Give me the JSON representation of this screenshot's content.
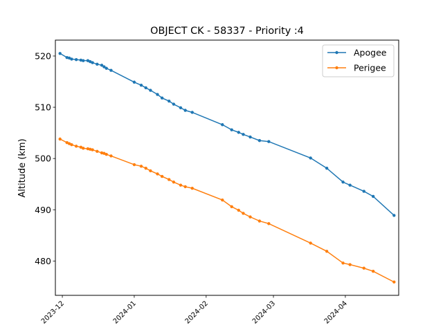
{
  "chart_data": {
    "type": "line",
    "title": "OBJECT CK - 58337 - Priority :4",
    "xlabel": "",
    "ylabel": "Altitude (km)",
    "x_ticks": [
      "2023-12",
      "2024-01",
      "2024-02",
      "2024-03",
      "2024-04"
    ],
    "y_ticks": [
      480,
      490,
      500,
      510,
      520
    ],
    "xlim": [
      "2023-11-28",
      "2024-04-24"
    ],
    "ylim": [
      473.3,
      523.1
    ],
    "legend_position": "top-right",
    "grid": false,
    "series": [
      {
        "name": "Apogee",
        "color": "#1f77b4",
        "points": [
          [
            "2023-11-30",
            520.5
          ],
          [
            "2023-12-03",
            519.7
          ],
          [
            "2023-12-04",
            519.6
          ],
          [
            "2023-12-05",
            519.4
          ],
          [
            "2023-12-07",
            519.3
          ],
          [
            "2023-12-09",
            519.2
          ],
          [
            "2023-12-10",
            519.1
          ],
          [
            "2023-12-12",
            519.1
          ],
          [
            "2023-12-13",
            518.9
          ],
          [
            "2023-12-14",
            518.7
          ],
          [
            "2023-12-16",
            518.4
          ],
          [
            "2023-12-18",
            518.2
          ],
          [
            "2023-12-19",
            517.9
          ],
          [
            "2023-12-20",
            517.6
          ],
          [
            "2023-12-22",
            517.2
          ],
          [
            "2024-01-01",
            514.9
          ],
          [
            "2024-01-04",
            514.3
          ],
          [
            "2024-01-06",
            513.8
          ],
          [
            "2024-01-08",
            513.3
          ],
          [
            "2024-01-11",
            512.5
          ],
          [
            "2024-01-13",
            511.8
          ],
          [
            "2024-01-16",
            511.2
          ],
          [
            "2024-01-18",
            510.6
          ],
          [
            "2024-01-21",
            509.9
          ],
          [
            "2024-01-23",
            509.4
          ],
          [
            "2024-01-26",
            509.0
          ],
          [
            "2024-02-08",
            506.6
          ],
          [
            "2024-02-12",
            505.6
          ],
          [
            "2024-02-15",
            505.1
          ],
          [
            "2024-02-17",
            504.7
          ],
          [
            "2024-02-20",
            504.2
          ],
          [
            "2024-02-24",
            503.5
          ],
          [
            "2024-02-28",
            503.3
          ],
          [
            "2024-03-17",
            500.1
          ],
          [
            "2024-03-24",
            498.1
          ],
          [
            "2024-03-31",
            495.4
          ],
          [
            "2024-04-03",
            494.8
          ],
          [
            "2024-04-09",
            493.6
          ],
          [
            "2024-04-13",
            492.6
          ],
          [
            "2024-04-22",
            488.9
          ]
        ]
      },
      {
        "name": "Perigee",
        "color": "#ff7f0e",
        "points": [
          [
            "2023-11-30",
            503.8
          ],
          [
            "2023-12-03",
            503.1
          ],
          [
            "2023-12-04",
            502.9
          ],
          [
            "2023-12-05",
            502.7
          ],
          [
            "2023-12-07",
            502.4
          ],
          [
            "2023-12-09",
            502.2
          ],
          [
            "2023-12-10",
            502.0
          ],
          [
            "2023-12-12",
            501.9
          ],
          [
            "2023-12-13",
            501.8
          ],
          [
            "2023-12-14",
            501.7
          ],
          [
            "2023-12-16",
            501.4
          ],
          [
            "2023-12-18",
            501.1
          ],
          [
            "2023-12-19",
            501.0
          ],
          [
            "2023-12-20",
            500.8
          ],
          [
            "2023-12-22",
            500.5
          ],
          [
            "2024-01-01",
            498.8
          ],
          [
            "2024-01-04",
            498.5
          ],
          [
            "2024-01-06",
            498.1
          ],
          [
            "2024-01-08",
            497.6
          ],
          [
            "2024-01-11",
            497.0
          ],
          [
            "2024-01-13",
            496.5
          ],
          [
            "2024-01-16",
            495.9
          ],
          [
            "2024-01-18",
            495.4
          ],
          [
            "2024-01-21",
            494.8
          ],
          [
            "2024-01-23",
            494.5
          ],
          [
            "2024-01-26",
            494.2
          ],
          [
            "2024-02-08",
            491.9
          ],
          [
            "2024-02-12",
            490.6
          ],
          [
            "2024-02-15",
            489.9
          ],
          [
            "2024-02-17",
            489.3
          ],
          [
            "2024-02-20",
            488.6
          ],
          [
            "2024-02-24",
            487.8
          ],
          [
            "2024-02-28",
            487.3
          ],
          [
            "2024-03-17",
            483.5
          ],
          [
            "2024-03-24",
            481.9
          ],
          [
            "2024-03-31",
            479.6
          ],
          [
            "2024-04-03",
            479.3
          ],
          [
            "2024-04-09",
            478.6
          ],
          [
            "2024-04-13",
            478.0
          ],
          [
            "2024-04-22",
            475.9
          ]
        ]
      }
    ]
  }
}
